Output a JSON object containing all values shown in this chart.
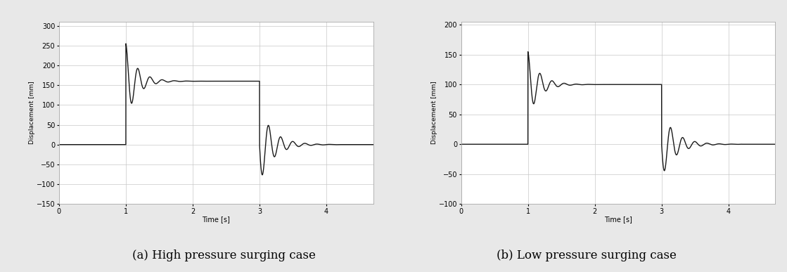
{
  "left_chart": {
    "title": "(a) High pressure surging case",
    "ylabel": "Displacement [mm]",
    "xlabel": "Time [s]",
    "xlim": [
      0,
      4.7
    ],
    "ylim": [
      -150,
      310
    ],
    "yticks": [
      -150,
      -100,
      -50,
      0,
      50,
      100,
      150,
      200,
      250,
      300
    ],
    "xticks": [
      0,
      1,
      2,
      3,
      4
    ],
    "steady_open": 160,
    "peak_open": 255,
    "open_time": 1.0,
    "close_time": 3.0,
    "peak_close_neg": -95,
    "osc_freq_open": 5.5,
    "osc_freq_close": 5.5,
    "osc_decay_open": 6.0,
    "osc_decay_close": 5.0
  },
  "right_chart": {
    "title": "(b) Low pressure surging case",
    "ylabel": "Displacement [mm]",
    "xlabel": "Time [s]",
    "xlim": [
      0,
      4.7
    ],
    "ylim": [
      -100,
      205
    ],
    "yticks": [
      -100,
      -50,
      0,
      50,
      100,
      150,
      200
    ],
    "xticks": [
      0,
      1,
      2,
      3,
      4
    ],
    "steady_open": 100,
    "peak_open": 155,
    "open_time": 1.0,
    "close_time": 3.0,
    "peak_close_neg": -55,
    "osc_freq_open": 5.5,
    "osc_freq_close": 5.5,
    "osc_decay_open": 6.0,
    "osc_decay_close": 5.0
  },
  "line_color": "#1a1a1a",
  "line_width": 1.0,
  "grid_color": "#c8c8c8",
  "grid_linewidth": 0.5,
  "bg_color": "#ffffff",
  "figure_bg": "#e8e8e8",
  "caption_fontsize": 12,
  "label_fontsize": 7,
  "tick_fontsize": 7,
  "ylabel_fontsize": 6.5
}
